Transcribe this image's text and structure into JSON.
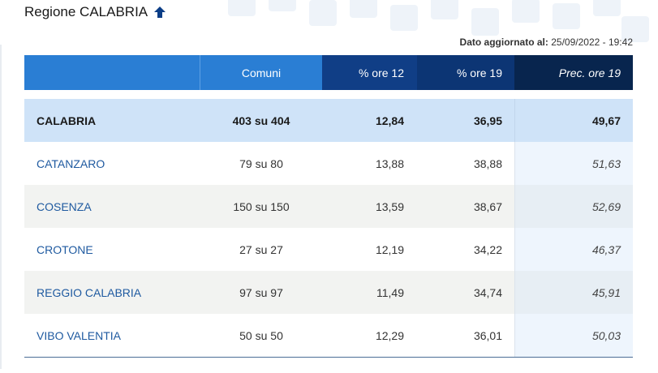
{
  "header": {
    "title": "Regione CALABRIA",
    "updated_label": "Dato aggiornato al:",
    "updated_value": "25/09/2022 - 19:42"
  },
  "table": {
    "columns": [
      "",
      "Comuni",
      "% ore 12",
      "% ore 19",
      "Prec. ore 19"
    ],
    "region": {
      "name": "CALABRIA",
      "comuni": "403 su 404",
      "ore12": "12,84",
      "ore19": "36,95",
      "prec": "49,67"
    },
    "rows": [
      {
        "name": "CATANZARO",
        "comuni": "79 su 80",
        "ore12": "13,88",
        "ore19": "38,88",
        "prec": "51,63"
      },
      {
        "name": "COSENZA",
        "comuni": "150 su 150",
        "ore12": "13,59",
        "ore19": "38,67",
        "prec": "52,69"
      },
      {
        "name": "CROTONE",
        "comuni": "27 su 27",
        "ore12": "12,19",
        "ore19": "34,22",
        "prec": "46,37"
      },
      {
        "name": "REGGIO CALABRIA",
        "comuni": "97 su 97",
        "ore12": "11,49",
        "ore19": "34,74",
        "prec": "45,91"
      },
      {
        "name": "VIBO VALENTIA",
        "comuni": "50 su 50",
        "ore12": "12,29",
        "ore19": "36,01",
        "prec": "50,03"
      }
    ]
  },
  "colors": {
    "header_blue": "#2a7ed4",
    "header_dark": "#08254e",
    "region_row": "#cfe3f8",
    "link_blue": "#1f5aa0"
  }
}
